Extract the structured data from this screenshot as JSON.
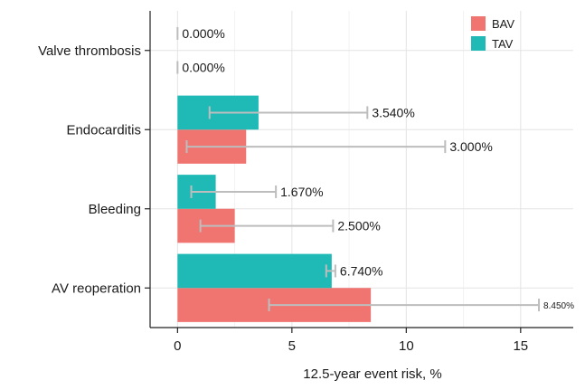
{
  "chart_data": {
    "type": "bar",
    "orientation": "horizontal",
    "categories": [
      "AV reoperation",
      "Bleeding",
      "Endocarditis",
      "Valve thrombosis"
    ],
    "series": [
      {
        "name": "BAV",
        "color": "#f07470",
        "values": [
          8.45,
          2.5,
          3.0,
          0.0
        ],
        "labels": [
          "8.450%",
          "2.500%",
          "3.000%",
          "0.000%"
        ],
        "ci": [
          [
            4.0,
            15.8
          ],
          [
            1.0,
            6.8
          ],
          [
            0.4,
            11.7
          ],
          [
            0.0,
            0.0
          ]
        ]
      },
      {
        "name": "TAV",
        "color": "#1fbab6",
        "values": [
          6.74,
          1.67,
          3.54,
          0.0
        ],
        "labels": [
          "6.740%",
          "1.670%",
          "3.540%",
          "0.000%"
        ],
        "ci": [
          [
            6.5,
            6.9
          ],
          [
            0.6,
            4.3
          ],
          [
            1.4,
            8.3
          ],
          [
            0.0,
            0.0
          ]
        ]
      }
    ],
    "xlabel": "12.5-year event risk, %",
    "xlim": [
      -1.2,
      17.3
    ],
    "xticks": [
      0,
      5,
      10,
      15
    ],
    "grid": true,
    "legend": "top-right"
  }
}
